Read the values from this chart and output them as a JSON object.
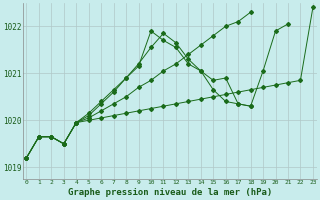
{
  "title": "Graphe pression niveau de la mer (hPa)",
  "x_ticks": [
    0,
    1,
    2,
    3,
    4,
    5,
    6,
    7,
    8,
    9,
    10,
    11,
    12,
    13,
    14,
    15,
    16,
    17,
    18,
    19,
    20,
    21,
    22,
    23
  ],
  "ylim": [
    1018.75,
    1022.5
  ],
  "yticks": [
    1019,
    1020,
    1021,
    1022
  ],
  "bg_color": "#c8ecec",
  "grid_color": "#b0c8c8",
  "line_color": "#1a6b1a",
  "series": [
    [
      1019.2,
      1019.65,
      1019.65,
      1019.5,
      1019.95,
      1020.15,
      1020.4,
      1020.65,
      1020.9,
      1021.15,
      1021.9,
      1021.7,
      1021.55,
      1021.2,
      1021.05,
      1020.85,
      1020.9,
      1020.35,
      1020.3,
      null,
      null,
      null,
      null,
      null
    ],
    [
      1019.2,
      1019.65,
      1019.65,
      1019.5,
      1019.95,
      1020.05,
      1020.2,
      1020.35,
      1020.5,
      1020.7,
      1020.85,
      1021.05,
      1021.2,
      1021.4,
      1021.6,
      1021.8,
      1022.0,
      1022.1,
      1022.3,
      null,
      null,
      null,
      null,
      null
    ],
    [
      1019.2,
      1019.65,
      1019.65,
      1019.5,
      1019.95,
      1020.0,
      1020.05,
      1020.1,
      1020.15,
      1020.2,
      1020.25,
      1020.3,
      1020.35,
      1020.4,
      1020.45,
      1020.5,
      1020.55,
      1020.6,
      1020.65,
      1020.7,
      1020.75,
      1020.8,
      1020.85,
      1022.4
    ],
    [
      1019.2,
      1019.65,
      1019.65,
      1019.5,
      1019.95,
      1020.1,
      1020.35,
      1020.6,
      1020.9,
      1021.2,
      1021.55,
      1021.85,
      1021.65,
      1021.3,
      1021.05,
      1020.65,
      1020.4,
      1020.35,
      1020.3,
      1021.05,
      1021.9,
      1022.05,
      null,
      null
    ]
  ]
}
